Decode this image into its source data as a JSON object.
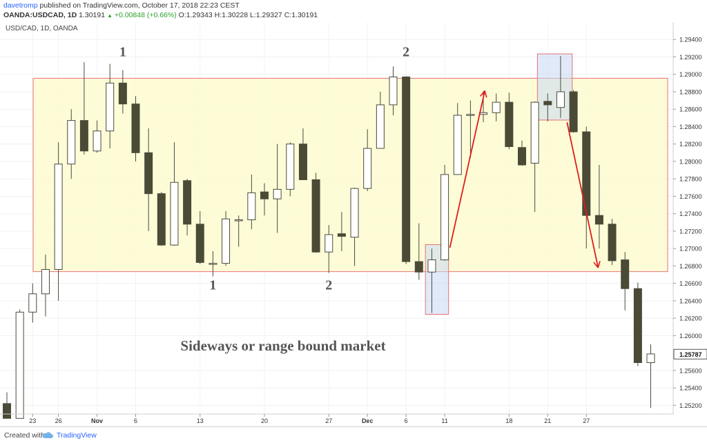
{
  "header": {
    "user": "davetromp",
    "published": "published on TradingView.com, October 17, 2018 22:23 CEST",
    "symbol": "OANDA:USDCAD, 1D",
    "last": "1.30191",
    "change": "+0.00848 (+0.66%)",
    "o_label": "O:",
    "o_value": "1.29343",
    "h_label": "H:",
    "h_value": "1.30228",
    "l_label": "L:",
    "l_value": "1.29327",
    "c_label": "C:",
    "c_value": "1.30191",
    "up_color": "#2ca02c"
  },
  "footer": {
    "created_with": "Created with",
    "brand": "TradingView"
  },
  "chart_data": {
    "type": "candlestick",
    "title": "USD/CAD, 1D, OANDA",
    "annotation": "Sideways or range bound market",
    "ylim": [
      1.251,
      1.296
    ],
    "y_ticks": [
      "1.29400",
      "1.29200",
      "1.29000",
      "1.28800",
      "1.28600",
      "1.28400",
      "1.28200",
      "1.28000",
      "1.27800",
      "1.27600",
      "1.27400",
      "1.27200",
      "1.27000",
      "1.26800",
      "1.26600",
      "1.26400",
      "1.26200",
      "1.26000",
      "1.25787",
      "1.25600",
      "1.25400",
      "1.25200"
    ],
    "last_price_label": "1.25787",
    "x_ticks": [
      {
        "label": "23",
        "bar": 2,
        "bold": false
      },
      {
        "label": "26",
        "bar": 4,
        "bold": false
      },
      {
        "label": "Nov",
        "bar": 7,
        "bold": true
      },
      {
        "label": "6",
        "bar": 10,
        "bold": false
      },
      {
        "label": "13",
        "bar": 15,
        "bold": false
      },
      {
        "label": "20",
        "bar": 20,
        "bold": false
      },
      {
        "label": "27",
        "bar": 25,
        "bold": false
      },
      {
        "label": "Dec",
        "bar": 28,
        "bold": true
      },
      {
        "label": "6",
        "bar": 31,
        "bold": false
      },
      {
        "label": "11",
        "bar": 34,
        "bold": false
      },
      {
        "label": "18",
        "bar": 39,
        "bold": false
      },
      {
        "label": "21",
        "bar": 42,
        "bold": false
      },
      {
        "label": "27",
        "bar": 45,
        "bold": false
      }
    ],
    "candles": [
      {
        "o": 1.2522,
        "h": 1.2535,
        "l": 1.2505,
        "c": 1.2505
      },
      {
        "o": 1.2505,
        "h": 1.263,
        "l": 1.2505,
        "c": 1.2627
      },
      {
        "o": 1.2627,
        "h": 1.266,
        "l": 1.2615,
        "c": 1.2648
      },
      {
        "o": 1.2648,
        "h": 1.2693,
        "l": 1.2622,
        "c": 1.2676
      },
      {
        "o": 1.2676,
        "h": 1.2822,
        "l": 1.264,
        "c": 1.2797
      },
      {
        "o": 1.2797,
        "h": 1.286,
        "l": 1.278,
        "c": 1.2847
      },
      {
        "o": 1.2847,
        "h": 1.2914,
        "l": 1.2808,
        "c": 1.2812
      },
      {
        "o": 1.2812,
        "h": 1.2847,
        "l": 1.281,
        "c": 1.2835
      },
      {
        "o": 1.2835,
        "h": 1.2912,
        "l": 1.2815,
        "c": 1.289
      },
      {
        "o": 1.289,
        "h": 1.2905,
        "l": 1.2855,
        "c": 1.2866
      },
      {
        "o": 1.2866,
        "h": 1.2875,
        "l": 1.28,
        "c": 1.281
      },
      {
        "o": 1.281,
        "h": 1.2838,
        "l": 1.272,
        "c": 1.2763
      },
      {
        "o": 1.2763,
        "h": 1.2765,
        "l": 1.2703,
        "c": 1.2704
      },
      {
        "o": 1.2704,
        "h": 1.2822,
        "l": 1.2703,
        "c": 1.2776
      },
      {
        "o": 1.2778,
        "h": 1.278,
        "l": 1.2715,
        "c": 1.2728
      },
      {
        "o": 1.2728,
        "h": 1.2743,
        "l": 1.2682,
        "c": 1.2684
      },
      {
        "o": 1.2683,
        "h": 1.2697,
        "l": 1.2668,
        "c": 1.2683
      },
      {
        "o": 1.2683,
        "h": 1.2743,
        "l": 1.268,
        "c": 1.2734
      },
      {
        "o": 1.2732,
        "h": 1.2738,
        "l": 1.2702,
        "c": 1.2733
      },
      {
        "o": 1.2733,
        "h": 1.2785,
        "l": 1.2722,
        "c": 1.2764
      },
      {
        "o": 1.2765,
        "h": 1.2775,
        "l": 1.2738,
        "c": 1.2757
      },
      {
        "o": 1.2757,
        "h": 1.282,
        "l": 1.2718,
        "c": 1.2768
      },
      {
        "o": 1.2768,
        "h": 1.2822,
        "l": 1.276,
        "c": 1.282
      },
      {
        "o": 1.282,
        "h": 1.2838,
        "l": 1.2779,
        "c": 1.2779
      },
      {
        "o": 1.2779,
        "h": 1.2787,
        "l": 1.2695,
        "c": 1.2696
      },
      {
        "o": 1.2696,
        "h": 1.2727,
        "l": 1.2672,
        "c": 1.2716
      },
      {
        "o": 1.2717,
        "h": 1.2742,
        "l": 1.2697,
        "c": 1.2714
      },
      {
        "o": 1.2713,
        "h": 1.277,
        "l": 1.268,
        "c": 1.2769
      },
      {
        "o": 1.2769,
        "h": 1.2837,
        "l": 1.2766,
        "c": 1.2815
      },
      {
        "o": 1.2815,
        "h": 1.288,
        "l": 1.2815,
        "c": 1.2865
      },
      {
        "o": 1.2865,
        "h": 1.2909,
        "l": 1.2853,
        "c": 1.2897
      },
      {
        "o": 1.2897,
        "h": 1.2898,
        "l": 1.2682,
        "c": 1.2685
      },
      {
        "o": 1.2685,
        "h": 1.2729,
        "l": 1.2664,
        "c": 1.2673
      },
      {
        "o": 1.2673,
        "h": 1.27,
        "l": 1.2626,
        "c": 1.2687
      },
      {
        "o": 1.2687,
        "h": 1.2796,
        "l": 1.2686,
        "c": 1.2785
      },
      {
        "o": 1.2785,
        "h": 1.2867,
        "l": 1.2785,
        "c": 1.2853
      },
      {
        "o": 1.2853,
        "h": 1.287,
        "l": 1.2804,
        "c": 1.2854
      },
      {
        "o": 1.2854,
        "h": 1.2881,
        "l": 1.2845,
        "c": 1.2856
      },
      {
        "o": 1.2856,
        "h": 1.2878,
        "l": 1.2846,
        "c": 1.2868
      },
      {
        "o": 1.2868,
        "h": 1.2879,
        "l": 1.2814,
        "c": 1.2817
      },
      {
        "o": 1.2816,
        "h": 1.2824,
        "l": 1.2795,
        "c": 1.2796
      },
      {
        "o": 1.2798,
        "h": 1.2869,
        "l": 1.2742,
        "c": 1.2868
      },
      {
        "o": 1.2869,
        "h": 1.2878,
        "l": 1.2846,
        "c": 1.2865
      },
      {
        "o": 1.2862,
        "h": 1.2921,
        "l": 1.285,
        "c": 1.288
      },
      {
        "o": 1.288,
        "h": 1.2882,
        "l": 1.2833,
        "c": 1.2834
      },
      {
        "o": 1.2834,
        "h": 1.284,
        "l": 1.27,
        "c": 1.2738
      },
      {
        "o": 1.2738,
        "h": 1.2796,
        "l": 1.27,
        "c": 1.2728
      },
      {
        "o": 1.2728,
        "h": 1.2734,
        "l": 1.2681,
        "c": 1.2686
      },
      {
        "o": 1.2687,
        "h": 1.2696,
        "l": 1.2629,
        "c": 1.2654
      },
      {
        "o": 1.2654,
        "h": 1.2661,
        "l": 1.2565,
        "c": 1.2569
      },
      {
        "o": 1.2569,
        "h": 1.259,
        "l": 1.2517,
        "c": 1.2579
      }
    ],
    "range_zone": {
      "high": 1.28955,
      "low": 1.26735,
      "label_top": "2",
      "label_bottom": "1"
    },
    "swing_labels": [
      {
        "text": "1",
        "bar": 9,
        "position": "top"
      },
      {
        "text": "2",
        "bar": 31,
        "position": "top"
      },
      {
        "text": "1",
        "bar": 16,
        "position": "bottom"
      },
      {
        "text": "2",
        "bar": 25,
        "position": "bottom"
      }
    ],
    "highlight_boxes": [
      {
        "bar_from": 32.5,
        "bar_to": 34.3,
        "high": 1.27045,
        "low": 1.26245
      },
      {
        "bar_from": 41.2,
        "bar_to": 43.9,
        "high": 1.29235,
        "low": 1.28475
      }
    ],
    "arrows": [
      {
        "from_bar": 34.4,
        "from_price": 1.2701,
        "to_bar": 37.1,
        "to_price": 1.288
      },
      {
        "from_bar": 43.5,
        "from_price": 1.2845,
        "to_bar": 45.9,
        "to_price": 1.2679
      }
    ],
    "colors": {
      "bear": "#4b4a35",
      "bull": "#ffffff",
      "zone": "#fdfbd0",
      "zone_border": "#e8707a",
      "box": "#c9d8f2",
      "arrow": "#e11b1b",
      "annotation": "#555555"
    }
  }
}
